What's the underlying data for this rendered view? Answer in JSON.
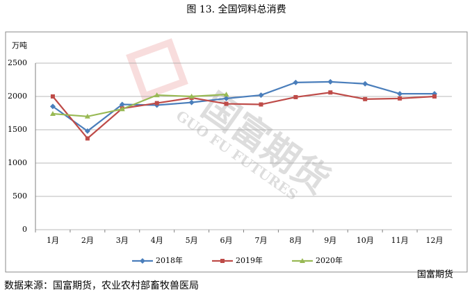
{
  "chart_data": {
    "type": "line",
    "title": "图 13.  全国饲料总消费",
    "y_unit": "万吨",
    "categories": [
      "1月",
      "2月",
      "3月",
      "4月",
      "5月",
      "6月",
      "7月",
      "8月",
      "9月",
      "10月",
      "11月",
      "12月"
    ],
    "series": [
      {
        "name": "2018年",
        "color": "#4a7ebb",
        "marker": "diamond",
        "values": [
          1850,
          1480,
          1880,
          1870,
          1910,
          1970,
          2020,
          2210,
          2220,
          2190,
          2040,
          2040
        ]
      },
      {
        "name": "2019年",
        "color": "#be4b48",
        "marker": "square",
        "values": [
          2000,
          1370,
          1820,
          1900,
          1980,
          1890,
          1880,
          1990,
          2060,
          1960,
          1970,
          2000
        ]
      },
      {
        "name": "2020年",
        "color": "#98b954",
        "marker": "triangle",
        "values": [
          1740,
          1700,
          1810,
          2020,
          2000,
          2030,
          null,
          null,
          null,
          null,
          null,
          null
        ]
      }
    ],
    "ylim": [
      0,
      2500
    ],
    "yticks": [
      0,
      500,
      1000,
      1500,
      2000,
      2500
    ],
    "grid": true,
    "source": "数据来源：国富期货，农业农村部畜牧兽医局",
    "watermark": "国富期货",
    "watermark_en": "GUO FU FUTURES",
    "logo_text": "国富期货"
  }
}
